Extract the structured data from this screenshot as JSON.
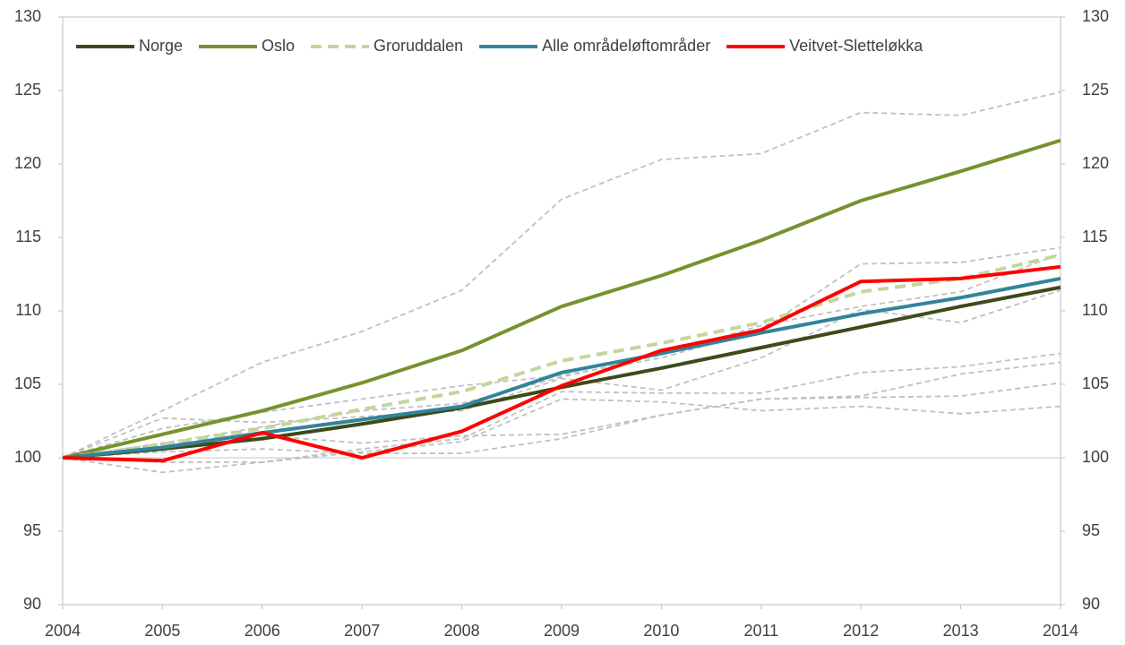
{
  "chart_data": {
    "type": "line",
    "categories": [
      "2004",
      "2005",
      "2006",
      "2007",
      "2008",
      "2009",
      "2010",
      "2011",
      "2012",
      "2013",
      "2014"
    ],
    "series": [
      {
        "name": "Norge",
        "color": "#3d4a1a",
        "dash": false,
        "values": [
          100,
          100.6,
          101.3,
          102.3,
          103.4,
          104.8,
          106.1,
          107.5,
          108.9,
          110.3,
          111.6
        ]
      },
      {
        "name": "Oslo",
        "color": "#76922c",
        "dash": false,
        "values": [
          100,
          101.6,
          103.2,
          105.1,
          107.3,
          110.3,
          112.4,
          114.8,
          117.5,
          119.5,
          121.6
        ]
      },
      {
        "name": "Groruddalen",
        "color": "#c3d69b",
        "dash": true,
        "values": [
          100,
          100.9,
          102.0,
          103.3,
          104.5,
          106.6,
          107.8,
          109.2,
          111.3,
          112.2,
          113.8
        ]
      },
      {
        "name": "Alle områdeløftområder",
        "color": "#31849b",
        "dash": false,
        "values": [
          100,
          100.7,
          101.7,
          102.6,
          103.5,
          105.8,
          107.1,
          108.5,
          109.8,
          110.9,
          112.2
        ]
      },
      {
        "name": "Veitvet-Sletteløkka",
        "color": "#ff0000",
        "dash": false,
        "values": [
          100,
          99.8,
          101.7,
          100.0,
          101.8,
          104.9,
          107.3,
          108.7,
          112.0,
          112.2,
          113.0
        ]
      }
    ],
    "background_series": [
      {
        "color": "#c0c0c0",
        "values": [
          100,
          103.2,
          106.5,
          108.6,
          111.4,
          117.6,
          120.3,
          120.7,
          123.5,
          123.3,
          124.9
        ]
      },
      {
        "color": "#c0c0c0",
        "values": [
          100,
          102.7,
          102.4,
          102.8,
          103.2,
          105.4,
          104.6,
          106.8,
          110.1,
          109.2,
          111.4
        ]
      },
      {
        "color": "#c0c0c0",
        "values": [
          100,
          102.0,
          103.1,
          104.0,
          104.9,
          105.6,
          106.8,
          108.7,
          113.2,
          113.3,
          114.3
        ]
      },
      {
        "color": "#c0c0c0",
        "values": [
          100,
          101.0,
          102.1,
          103.2,
          103.7,
          105.5,
          107.0,
          109.0,
          110.3,
          111.3,
          113.9
        ]
      },
      {
        "color": "#c0c0c0",
        "values": [
          100,
          99.0,
          99.7,
          100.6,
          101.3,
          104.5,
          104.4,
          104.4,
          105.8,
          106.2,
          107.1
        ]
      },
      {
        "color": "#c0c0c0",
        "values": [
          100,
          99.7,
          99.7,
          100.4,
          101.1,
          104.0,
          103.8,
          103.2,
          103.5,
          103.0,
          103.5
        ]
      },
      {
        "color": "#c0c0c0",
        "values": [
          100,
          100.4,
          100.6,
          100.3,
          100.3,
          101.3,
          102.9,
          104.0,
          104.1,
          104.2,
          105.1
        ]
      },
      {
        "color": "#c0c0c0",
        "values": [
          100,
          100.9,
          101.5,
          101.0,
          101.5,
          101.6,
          102.9,
          104.0,
          104.2,
          105.7,
          106.5
        ]
      }
    ],
    "ylim": [
      90,
      130
    ],
    "yticks": [
      90,
      95,
      100,
      105,
      110,
      115,
      120,
      125,
      130
    ],
    "y2lim": [
      90,
      130
    ],
    "y2ticks": [
      90,
      95,
      100,
      105,
      110,
      115,
      120,
      125,
      130
    ],
    "x_axis_crosses": 100,
    "grid": false,
    "legend": "top"
  }
}
